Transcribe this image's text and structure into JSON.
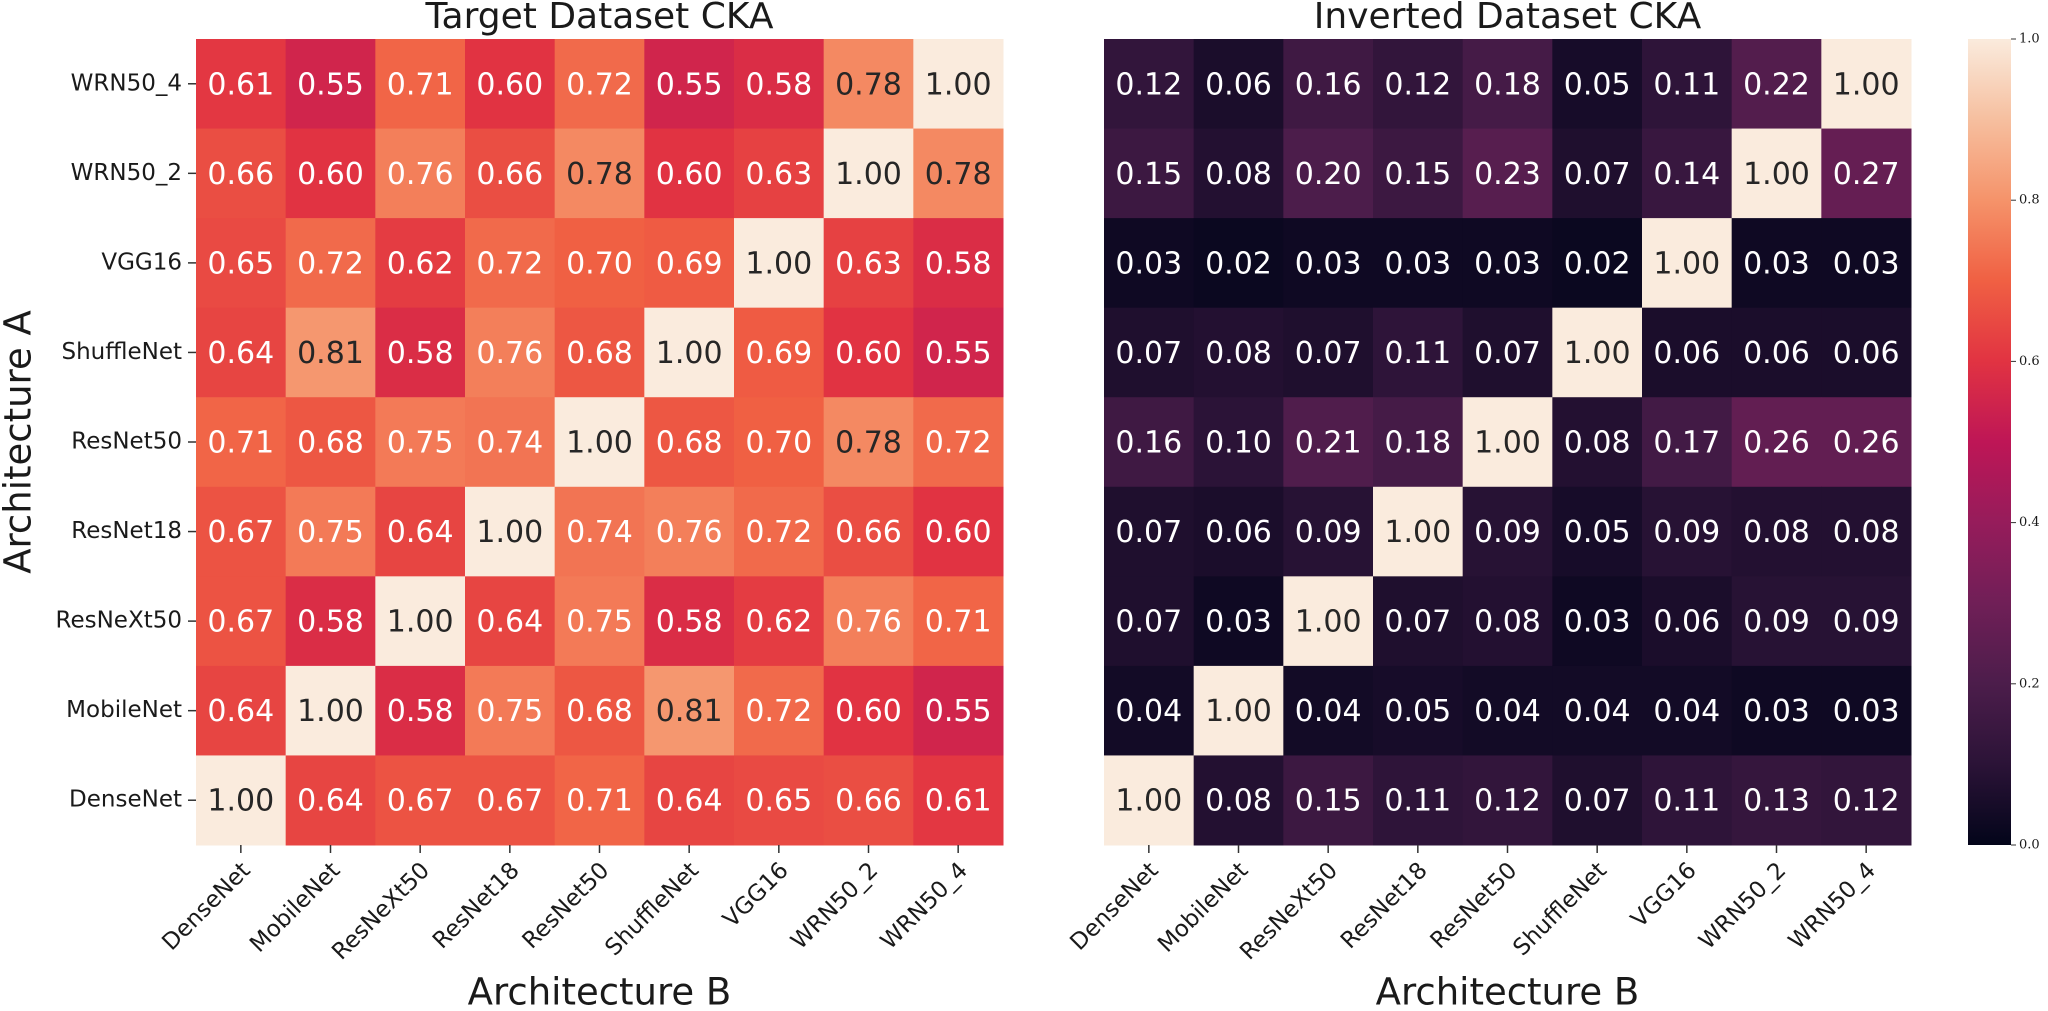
{
  "chart_data": [
    {
      "type": "heatmap",
      "title": "Target Dataset CKA",
      "x_label": "Architecture B",
      "y_label": "Architecture A",
      "x": [
        "DenseNet",
        "MobileNet",
        "ResNeXt50",
        "ResNet18",
        "ResNet50",
        "ShuffleNet",
        "VGG16",
        "WRN50_2",
        "WRN50_4"
      ],
      "y": [
        "WRN50_4",
        "WRN50_2",
        "VGG16",
        "ShuffleNet",
        "ResNet50",
        "ResNet18",
        "ResNeXt50",
        "MobileNet",
        "DenseNet"
      ],
      "values": [
        [
          0.61,
          0.55,
          0.71,
          0.6,
          0.72,
          0.55,
          0.58,
          0.78,
          1
        ],
        [
          0.66,
          0.6,
          0.76,
          0.66,
          0.78,
          0.6,
          0.63,
          1,
          0.78
        ],
        [
          0.65,
          0.72,
          0.62,
          0.72,
          0.7,
          0.69,
          1,
          0.63,
          0.58
        ],
        [
          0.64,
          0.81,
          0.58,
          0.76,
          0.68,
          1,
          0.69,
          0.6,
          0.55
        ],
        [
          0.71,
          0.68,
          0.75,
          0.74,
          1,
          0.68,
          0.7,
          0.78,
          0.72
        ],
        [
          0.67,
          0.75,
          0.64,
          1,
          0.74,
          0.76,
          0.72,
          0.66,
          0.6
        ],
        [
          0.67,
          0.58,
          1,
          0.64,
          0.75,
          0.58,
          0.62,
          0.76,
          0.71
        ],
        [
          0.64,
          1,
          0.58,
          0.75,
          0.68,
          0.81,
          0.72,
          0.6,
          0.55
        ],
        [
          1,
          0.64,
          0.67,
          0.67,
          0.71,
          0.64,
          0.65,
          0.66,
          0.61
        ]
      ],
      "value_labels": [
        [
          "0.61",
          "0.55",
          "0.71",
          "0.60",
          "0.72",
          "0.55",
          "0.58",
          "0.78",
          "1.00"
        ],
        [
          "0.66",
          "0.60",
          "0.76",
          "0.66",
          "0.78",
          "0.60",
          "0.63",
          "1.00",
          "0.78"
        ],
        [
          "0.65",
          "0.72",
          "0.62",
          "0.72",
          "0.70",
          "0.69",
          "1.00",
          "0.63",
          "0.58"
        ],
        [
          "0.64",
          "0.81",
          "0.58",
          "0.76",
          "0.68",
          "1.00",
          "0.69",
          "0.60",
          "0.55"
        ],
        [
          "0.71",
          "0.68",
          "0.75",
          "0.74",
          "1.00",
          "0.68",
          "0.70",
          "0.78",
          "0.72"
        ],
        [
          "0.67",
          "0.75",
          "0.64",
          "1.00",
          "0.74",
          "0.76",
          "0.72",
          "0.66",
          "0.60"
        ],
        [
          "0.67",
          "0.58",
          "1.00",
          "0.64",
          "0.75",
          "0.58",
          "0.62",
          "0.76",
          "0.71"
        ],
        [
          "0.64",
          "1.00",
          "0.58",
          "0.75",
          "0.68",
          "0.81",
          "0.72",
          "0.60",
          "0.55"
        ],
        [
          "1.00",
          "0.64",
          "0.67",
          "0.67",
          "0.71",
          "0.64",
          "0.65",
          "0.66",
          "0.61"
        ]
      ],
      "clim": [
        0,
        1
      ],
      "colormap": [
        "#03051a",
        "#2b1337",
        "#4c1d4b",
        "#701f57",
        "#961c5b",
        "#be1656",
        "#e13342",
        "#f06043",
        "#f5936a",
        "#f6bf9f",
        "#faebdd"
      ]
    },
    {
      "type": "heatmap",
      "title": "Inverted Dataset CKA",
      "x_label": "Architecture B",
      "x": [
        "DenseNet",
        "MobileNet",
        "ResNeXt50",
        "ResNet18",
        "ResNet50",
        "ShuffleNet",
        "VGG16",
        "WRN50_2",
        "WRN50_4"
      ],
      "values": [
        [
          0.12,
          0.06,
          0.16,
          0.12,
          0.18,
          0.05,
          0.11,
          0.22,
          1
        ],
        [
          0.15,
          0.08,
          0.2,
          0.15,
          0.23,
          0.07,
          0.14,
          1,
          0.27
        ],
        [
          0.03,
          0.02,
          0.03,
          0.03,
          0.03,
          0.02,
          1,
          0.03,
          0.03
        ],
        [
          0.07,
          0.08,
          0.07,
          0.11,
          0.07,
          1,
          0.06,
          0.06,
          0.06
        ],
        [
          0.16,
          0.1,
          0.21,
          0.18,
          1,
          0.08,
          0.17,
          0.26,
          0.26
        ],
        [
          0.07,
          0.06,
          0.09,
          1,
          0.09,
          0.05,
          0.09,
          0.08,
          0.08
        ],
        [
          0.07,
          0.03,
          1,
          0.07,
          0.08,
          0.03,
          0.06,
          0.09,
          0.09
        ],
        [
          0.04,
          1,
          0.04,
          0.05,
          0.04,
          0.04,
          0.04,
          0.03,
          0.03
        ],
        [
          1,
          0.08,
          0.15,
          0.11,
          0.12,
          0.07,
          0.11,
          0.13,
          0.12
        ]
      ],
      "value_labels": [
        [
          "0.12",
          "0.06",
          "0.16",
          "0.12",
          "0.18",
          "0.05",
          "0.11",
          "0.22",
          "1.00"
        ],
        [
          "0.15",
          "0.08",
          "0.20",
          "0.15",
          "0.23",
          "0.07",
          "0.14",
          "1.00",
          "0.27"
        ],
        [
          "0.03",
          "0.02",
          "0.03",
          "0.03",
          "0.03",
          "0.02",
          "1.00",
          "0.03",
          "0.03"
        ],
        [
          "0.07",
          "0.08",
          "0.07",
          "0.11",
          "0.07",
          "1.00",
          "0.06",
          "0.06",
          "0.06"
        ],
        [
          "0.16",
          "0.10",
          "0.21",
          "0.18",
          "1.00",
          "0.08",
          "0.17",
          "0.26",
          "0.26"
        ],
        [
          "0.07",
          "0.06",
          "0.09",
          "1.00",
          "0.09",
          "0.05",
          "0.09",
          "0.08",
          "0.08"
        ],
        [
          "0.07",
          "0.03",
          "1.00",
          "0.07",
          "0.08",
          "0.03",
          "0.06",
          "0.09",
          "0.09"
        ],
        [
          "0.04",
          "1.00",
          "0.04",
          "0.05",
          "0.04",
          "0.04",
          "0.04",
          "0.03",
          "0.03"
        ],
        [
          "1.00",
          "0.08",
          "0.15",
          "0.11",
          "0.12",
          "0.07",
          "0.11",
          "0.13",
          "0.12"
        ]
      ],
      "clim": [
        0,
        1
      ],
      "colormap": [
        "#03051a",
        "#2b1337",
        "#4c1d4b",
        "#701f57",
        "#961c5b",
        "#be1656",
        "#e13342",
        "#f06043",
        "#f5936a",
        "#f6bf9f",
        "#faebdd"
      ],
      "colorbar": {
        "ticks": [
          {
            "value": 0,
            "label": "0.0"
          },
          0.2,
          0.4,
          0.6,
          0.8,
          {
            "value": 1,
            "label": "1.0"
          }
        ]
      }
    }
  ]
}
